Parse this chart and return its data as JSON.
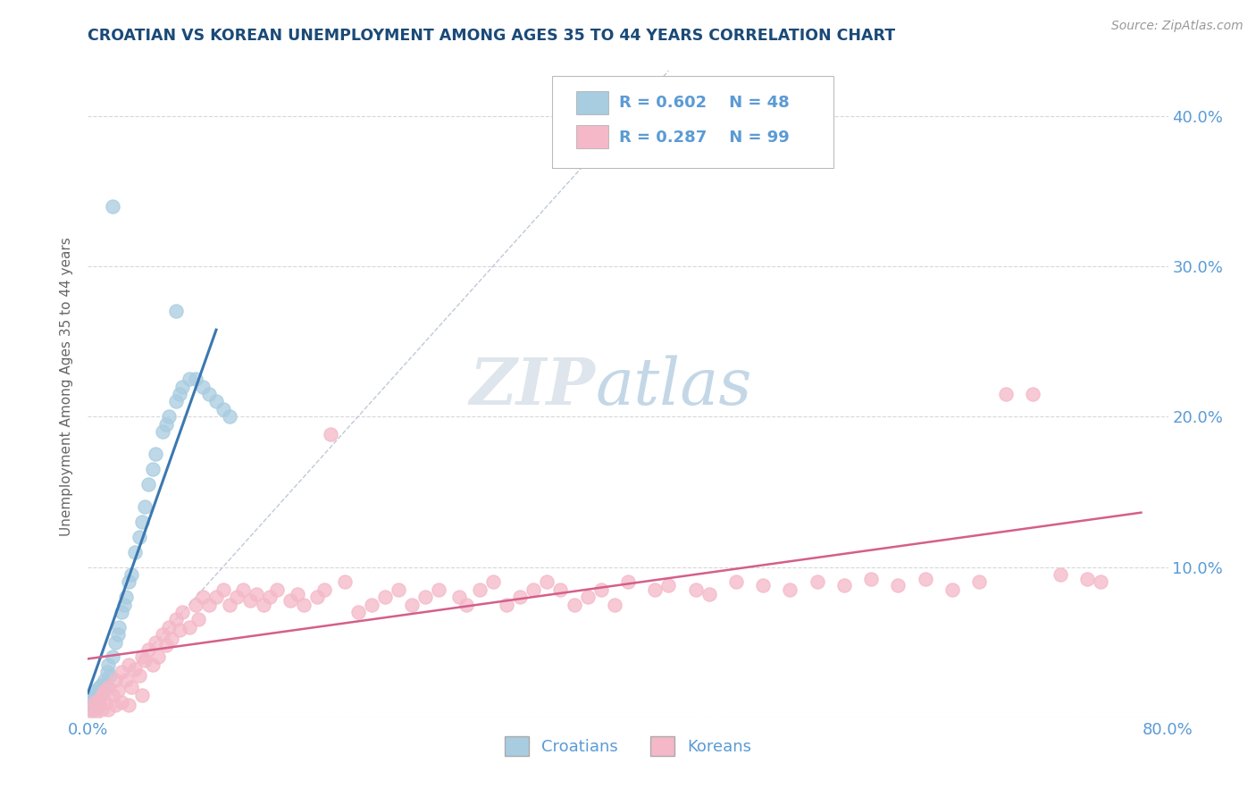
{
  "title": "CROATIAN VS KOREAN UNEMPLOYMENT AMONG AGES 35 TO 44 YEARS CORRELATION CHART",
  "source": "Source: ZipAtlas.com",
  "xlim": [
    0.0,
    0.8
  ],
  "ylim": [
    0.0,
    0.44
  ],
  "croatian_color": "#a8cce0",
  "korean_color": "#f4b8c8",
  "croatian_line_color": "#3b78b0",
  "korean_line_color": "#d45f8a",
  "diagonal_color": "#c0c8d8",
  "legend_R1": "R = 0.602",
  "legend_N1": "N = 48",
  "legend_R2": "R = 0.287",
  "legend_N2": "N = 99",
  "grid_color": "#d8d8d8",
  "background_color": "#ffffff",
  "title_color": "#1a4a78",
  "axis_color": "#5b9bd5",
  "ylabel_text": "Unemployment Among Ages 35 to 44 years",
  "watermark_zip": "ZIP",
  "watermark_atlas": "atlas"
}
